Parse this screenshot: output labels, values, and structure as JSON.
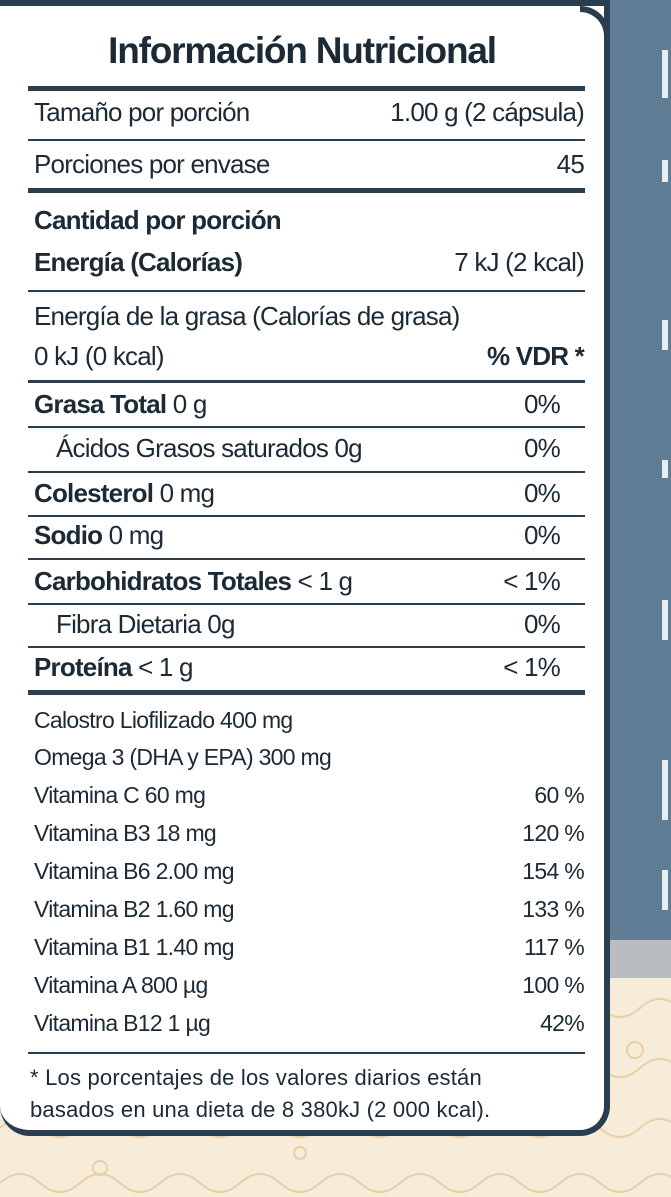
{
  "title": "Información Nutricional",
  "serving": {
    "size_label": "Tamaño por porción",
    "size_value": "1.00 g (2 cápsula)",
    "servings_label": "Porciones por envase",
    "servings_value": "45"
  },
  "amount_per_serving": "Cantidad por porción",
  "energy": {
    "label": "Energía (Calorías)",
    "value": "7 kJ (2 kcal)"
  },
  "fat_energy": {
    "label": "Energía de la grasa (Calorías de grasa)",
    "value": "0 kJ (0 kcal)"
  },
  "vdr_header": "% VDR *",
  "nutrients": [
    {
      "name": "Grasa Total",
      "amount": "0 g",
      "dv": "0%"
    },
    {
      "name": "Ácidos Grasos saturados",
      "amount": "0g",
      "dv": "0%"
    },
    {
      "name": "Colesterol",
      "amount": "0 mg",
      "dv": "0%"
    },
    {
      "name": "Sodio",
      "amount": "0 mg",
      "dv": "0%"
    },
    {
      "name": "Carbohidratos Totales",
      "amount": "< 1 g",
      "dv": "< 1%"
    },
    {
      "name": "Fibra Dietaria",
      "amount": "0g",
      "dv": "0%"
    },
    {
      "name": "Proteína",
      "amount": "< 1 g",
      "dv": "< 1%"
    }
  ],
  "extras": [
    {
      "label": "Calostro Liofilizado 400 mg",
      "dv": ""
    },
    {
      "label": "Omega 3 (DHA y EPA)  300 mg",
      "dv": ""
    },
    {
      "label": "Vitamina C 60 mg",
      "dv": "60 %"
    },
    {
      "label": "Vitamina B3 18 mg",
      "dv": "120 %"
    },
    {
      "label": "Vitamina B6 2.00 mg",
      "dv": "154 %"
    },
    {
      "label": "Vitamina B2 1.60 mg",
      "dv": "133 %"
    },
    {
      "label": "Vitamina B1 1.40 mg",
      "dv": "117 %"
    },
    {
      "label": "Vitamina A 800 µg",
      "dv": "100 %"
    },
    {
      "label": "Vitamina B12  1 µg",
      "dv": "42%"
    }
  ],
  "footnote_line1": "* Los porcentajes de los valores diarios están",
  "footnote_line2": "basados en una dieta de 8 380kJ (2 000 kcal).",
  "colors": {
    "border": "#2b3e50",
    "background": "#5f7d95",
    "cream": "#f7ecd8",
    "text": "#1c2a36"
  }
}
